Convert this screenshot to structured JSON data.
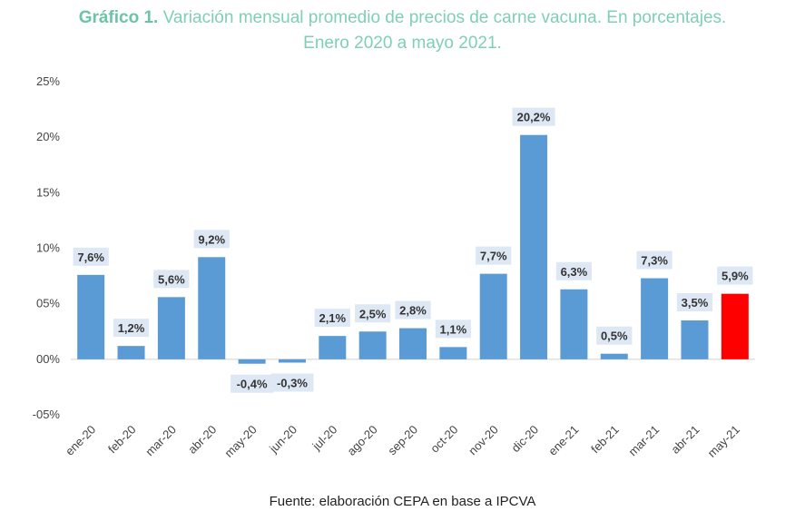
{
  "title": {
    "lead": "Gráfico 1.",
    "line1_rest": " Variación mensual promedio de precios de carne vacuna. En porcentajes.",
    "line2": "Enero 2020 a mayo 2021."
  },
  "source": "Fuente: elaboración CEPA en base a IPCVA",
  "colors": {
    "bar": "#5b9bd5",
    "highlight": "#ff0000",
    "label_bg": "#dde8f4",
    "title": "#7fcfb4"
  },
  "chart_data": {
    "type": "bar",
    "title": "Variación mensual promedio de precios de carne vacuna. En porcentajes. Enero 2020 a mayo 2021.",
    "xlabel": "",
    "ylabel": "",
    "ylim": [
      -5,
      25
    ],
    "yticks": [
      -5,
      0,
      5,
      10,
      15,
      20,
      25
    ],
    "ytick_labels": [
      "-05%",
      "00%",
      "05%",
      "10%",
      "15%",
      "20%",
      "25%"
    ],
    "categories": [
      "ene-20",
      "feb-20",
      "mar-20",
      "abr-20",
      "may-20",
      "jun-20",
      "jul-20",
      "ago-20",
      "sep-20",
      "oct-20",
      "nov-20",
      "dic-20",
      "ene-21",
      "feb-21",
      "mar-21",
      "abr-21",
      "may-21"
    ],
    "values": [
      7.6,
      1.2,
      5.6,
      9.2,
      -0.4,
      -0.3,
      2.1,
      2.5,
      2.8,
      1.1,
      7.7,
      20.2,
      6.3,
      0.5,
      7.3,
      3.5,
      5.9
    ],
    "data_labels": [
      "7,6%",
      "1,2%",
      "5,6%",
      "9,2%",
      "-0,4%",
      "-0,3%",
      "2,1%",
      "2,5%",
      "2,8%",
      "1,1%",
      "7,7%",
      "20,2%",
      "6,3%",
      "0,5%",
      "7,3%",
      "3,5%",
      "5,9%"
    ],
    "highlight_category": "may-21"
  }
}
